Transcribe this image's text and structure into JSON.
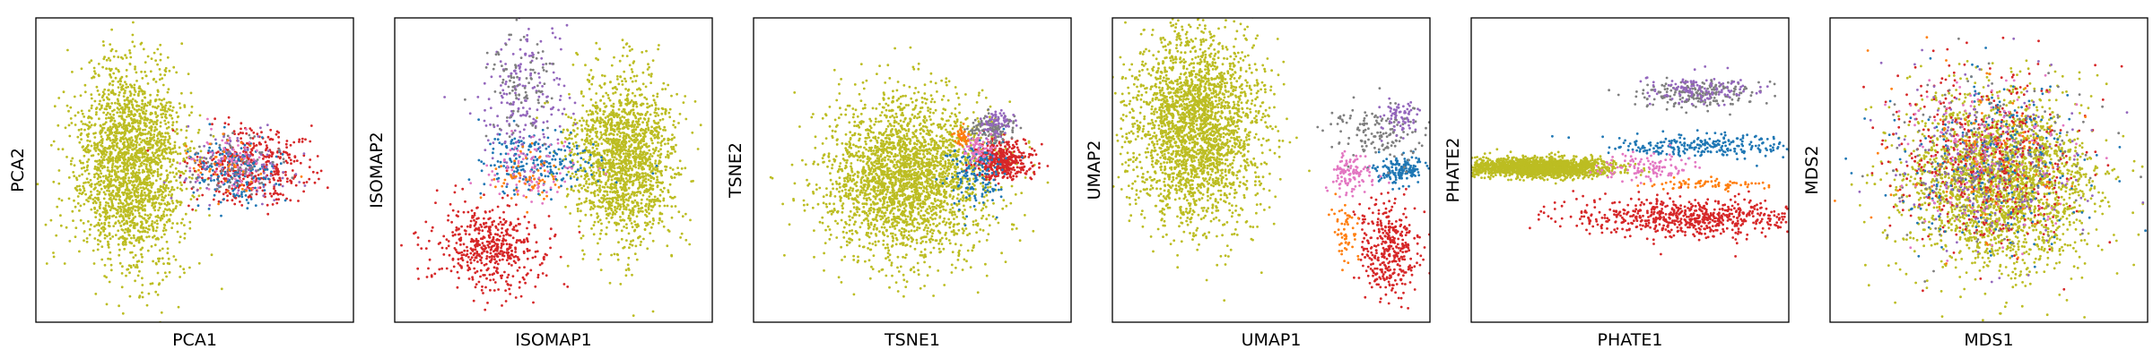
{
  "chart_data": [
    {
      "type": "scatter",
      "xlabel": "PCA1",
      "ylabel": "PCA2",
      "xticks": [],
      "yticks": [],
      "grid": false,
      "legend": "none",
      "clusters": [
        {
          "color": "#bcbd22",
          "center": [
            -1.3,
            0.1
          ],
          "spread": [
            0.55,
            1.05
          ],
          "count": 2200
        },
        {
          "color": "#d62728",
          "center": [
            1.1,
            0.1
          ],
          "spread": [
            0.6,
            0.4
          ],
          "count": 420
        },
        {
          "color": "#1f77b4",
          "center": [
            0.8,
            0.0
          ],
          "spread": [
            0.45,
            0.35
          ],
          "count": 160
        },
        {
          "color": "#9467bd",
          "center": [
            0.8,
            0.1
          ],
          "spread": [
            0.5,
            0.35
          ],
          "count": 110
        },
        {
          "color": "#e377c2",
          "center": [
            0.7,
            0.1
          ],
          "spread": [
            0.45,
            0.35
          ],
          "count": 70
        },
        {
          "color": "#7f7f7f",
          "center": [
            0.8,
            0.1
          ],
          "spread": [
            0.5,
            0.35
          ],
          "count": 70
        },
        {
          "color": "#ff7f0e",
          "center": [
            0.7,
            0.0
          ],
          "spread": [
            0.4,
            0.3
          ],
          "count": 40
        }
      ],
      "xlim": [
        -3.2,
        3.2
      ],
      "ylim": [
        -3.2,
        3.2
      ]
    },
    {
      "type": "scatter",
      "xlabel": "ISOMAP1",
      "ylabel": "ISOMAP2",
      "xticks": [],
      "yticks": [],
      "grid": false,
      "legend": "none",
      "clusters": [
        {
          "color": "#bcbd22",
          "center": [
            1.4,
            0.2
          ],
          "spread": [
            0.5,
            0.9
          ],
          "count": 1700
        },
        {
          "color": "#d62728",
          "center": [
            -1.3,
            -1.6
          ],
          "spread": [
            0.55,
            0.45
          ],
          "count": 500
        },
        {
          "color": "#1f77b4",
          "center": [
            -0.3,
            0.2
          ],
          "spread": [
            0.6,
            0.35
          ],
          "count": 220
        },
        {
          "color": "#9467bd",
          "center": [
            -0.6,
            1.4
          ],
          "spread": [
            0.45,
            0.8
          ],
          "count": 200
        },
        {
          "color": "#7f7f7f",
          "center": [
            -0.6,
            1.8
          ],
          "spread": [
            0.4,
            0.6
          ],
          "count": 100
        },
        {
          "color": "#e377c2",
          "center": [
            -0.3,
            0.0
          ],
          "spread": [
            0.5,
            0.35
          ],
          "count": 80
        },
        {
          "color": "#ff7f0e",
          "center": [
            -0.6,
            -0.2
          ],
          "spread": [
            0.35,
            0.25
          ],
          "count": 60
        }
      ],
      "xlim": [
        -3.2,
        3.2
      ],
      "ylim": [
        -3.2,
        3.2
      ]
    },
    {
      "type": "scatter",
      "xlabel": "TSNE1",
      "ylabel": "TSNE2",
      "xticks": [],
      "yticks": [],
      "grid": false,
      "legend": "none",
      "clusters": [
        {
          "color": "#bcbd22",
          "center": [
            -0.1,
            -0.15
          ],
          "spread": [
            0.85,
            0.85
          ],
          "count": 2600
        },
        {
          "color": "#d62728",
          "center": [
            1.8,
            0.2
          ],
          "spread": [
            0.28,
            0.2
          ],
          "count": 420
        },
        {
          "color": "#1f77b4",
          "center": [
            1.3,
            0.0
          ],
          "spread": [
            0.3,
            0.35
          ],
          "count": 160
        },
        {
          "color": "#7f7f7f",
          "center": [
            1.6,
            0.9
          ],
          "spread": [
            0.2,
            0.14
          ],
          "count": 120
        },
        {
          "color": "#9467bd",
          "center": [
            1.7,
            0.95
          ],
          "spread": [
            0.16,
            0.12
          ],
          "count": 70
        },
        {
          "color": "#e377c2",
          "center": [
            1.3,
            0.45
          ],
          "spread": [
            0.15,
            0.15
          ],
          "count": 70
        },
        {
          "color": "#ff7f0e",
          "center": [
            1.0,
            0.7
          ],
          "spread": [
            0.08,
            0.1
          ],
          "count": 45
        }
      ],
      "xlim": [
        -3.2,
        3.2
      ],
      "ylim": [
        -3.2,
        3.2
      ]
    },
    {
      "type": "scatter",
      "xlabel": "UMAP1",
      "ylabel": "UMAP2",
      "xticks": [],
      "yticks": [],
      "grid": false,
      "legend": "none",
      "clusters": [
        {
          "color": "#bcbd22",
          "center": [
            -1.5,
            0.9
          ],
          "spread": [
            0.65,
            1.0
          ],
          "count": 2600
        },
        {
          "color": "#d62728",
          "center": [
            2.4,
            -1.7
          ],
          "spread": [
            0.3,
            0.5
          ],
          "count": 380
        },
        {
          "color": "#1f77b4",
          "center": [
            2.6,
            0.0
          ],
          "spread": [
            0.25,
            0.15
          ],
          "count": 160
        },
        {
          "color": "#7f7f7f",
          "center": [
            2.2,
            0.8
          ],
          "spread": [
            0.5,
            0.3
          ],
          "count": 150
        },
        {
          "color": "#9467bd",
          "center": [
            2.6,
            1.1
          ],
          "spread": [
            0.2,
            0.25
          ],
          "count": 70
        },
        {
          "color": "#e377c2",
          "center": [
            1.6,
            -0.1
          ],
          "spread": [
            0.25,
            0.2
          ],
          "count": 110
        },
        {
          "color": "#ff7f0e",
          "center": [
            1.5,
            -1.3
          ],
          "spread": [
            0.12,
            0.3
          ],
          "count": 60
        }
      ],
      "xlim": [
        -3.2,
        3.2
      ],
      "ylim": [
        -3.2,
        3.2
      ]
    },
    {
      "type": "scatter",
      "xlabel": "PHATE1",
      "ylabel": "PHATE2",
      "xticks": [],
      "yticks": [],
      "grid": false,
      "legend": "none",
      "clusters": [
        {
          "color": "#bcbd22",
          "center": [
            -1.8,
            0.05
          ],
          "spread": [
            0.7,
            0.1
          ],
          "count": 1800
        },
        {
          "color": "#d62728",
          "center": [
            1.3,
            -1.0
          ],
          "spread": [
            1.2,
            0.2
          ],
          "count": 700
        },
        {
          "color": "#1f77b4",
          "center": [
            1.4,
            0.5
          ],
          "spread": [
            0.9,
            0.12
          ],
          "count": 260
        },
        {
          "color": "#7f7f7f",
          "center": [
            1.4,
            1.6
          ],
          "spread": [
            0.6,
            0.15
          ],
          "count": 200
        },
        {
          "color": "#9467bd",
          "center": [
            1.5,
            1.7
          ],
          "spread": [
            0.6,
            0.15
          ],
          "count": 120
        },
        {
          "color": "#e377c2",
          "center": [
            0.3,
            0.05
          ],
          "spread": [
            0.45,
            0.15
          ],
          "count": 110
        },
        {
          "color": "#ff7f0e",
          "center": [
            1.5,
            -0.3
          ],
          "spread": [
            0.6,
            0.05
          ],
          "count": 70
        }
      ],
      "xlim": [
        -3.2,
        3.2
      ],
      "ylim": [
        -3.2,
        3.2
      ]
    },
    {
      "type": "scatter",
      "xlabel": "MDS1",
      "ylabel": "MDS2",
      "xticks": [],
      "yticks": [],
      "grid": false,
      "legend": "none",
      "clusters": [
        {
          "color": "#bcbd22",
          "center": [
            0.2,
            -0.3
          ],
          "spread": [
            0.95,
            0.9
          ],
          "count": 2400
        },
        {
          "color": "#d62728",
          "center": [
            0.0,
            0.3
          ],
          "spread": [
            0.95,
            0.9
          ],
          "count": 500
        },
        {
          "color": "#1f77b4",
          "center": [
            0.0,
            0.2
          ],
          "spread": [
            0.95,
            0.9
          ],
          "count": 250
        },
        {
          "color": "#9467bd",
          "center": [
            0.0,
            0.3
          ],
          "spread": [
            0.95,
            0.9
          ],
          "count": 200
        },
        {
          "color": "#7f7f7f",
          "center": [
            0.0,
            0.3
          ],
          "spread": [
            0.95,
            0.9
          ],
          "count": 200
        },
        {
          "color": "#e377c2",
          "center": [
            0.0,
            0.3
          ],
          "spread": [
            0.95,
            0.9
          ],
          "count": 150
        },
        {
          "color": "#ff7f0e",
          "center": [
            0.0,
            0.2
          ],
          "spread": [
            0.95,
            0.9
          ],
          "count": 100
        }
      ],
      "xlim": [
        -3.2,
        3.2
      ],
      "ylim": [
        -3.2,
        3.2
      ]
    }
  ]
}
